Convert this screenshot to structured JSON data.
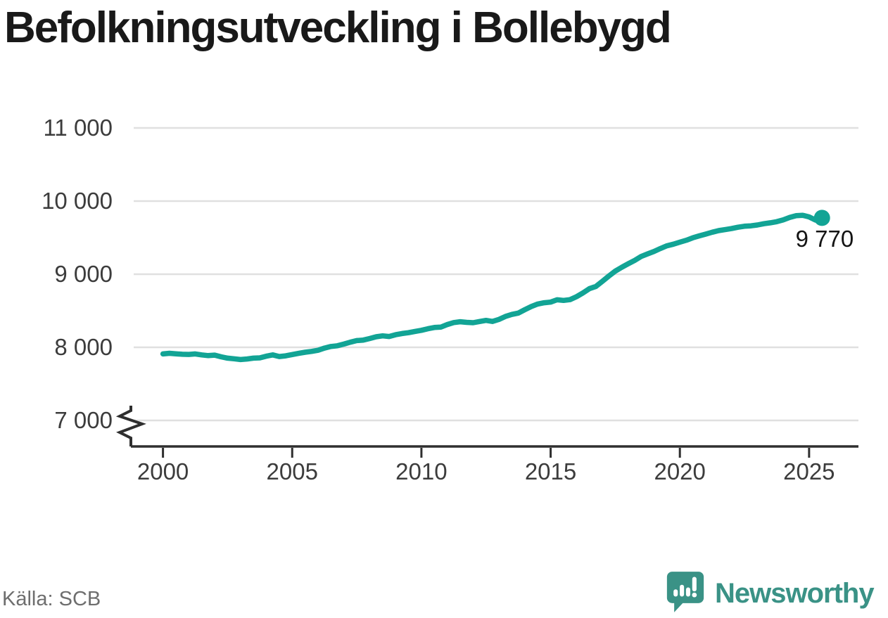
{
  "title": "Befolkningsutveckling i Bollebygd",
  "source": "Källa: SCB",
  "branding": {
    "logo_text": "Newsworthy",
    "logo_icon": "newsworthy-chart-bubble-icon",
    "logo_color": "#3a9286"
  },
  "chart_data": {
    "type": "line",
    "title": "Befolkningsutveckling i Bollebygd",
    "grid": true,
    "axis_break": true,
    "line_color": "#12a495",
    "grid_color": "#e0e0e0",
    "axis_color": "#2f2f2f",
    "ylim": [
      7000,
      11000
    ],
    "xlim": [
      2000,
      2025.5
    ],
    "end_value": 9770,
    "end_label": "9 770",
    "x_ticks": [
      {
        "value": 2000,
        "label": "2000"
      },
      {
        "value": 2005,
        "label": "2005"
      },
      {
        "value": 2010,
        "label": "2010"
      },
      {
        "value": 2015,
        "label": "2015"
      },
      {
        "value": 2020,
        "label": "2020"
      },
      {
        "value": 2025,
        "label": "2025"
      }
    ],
    "y_ticks": [
      {
        "value": 7000,
        "label": "7 000"
      },
      {
        "value": 8000,
        "label": "8 000"
      },
      {
        "value": 9000,
        "label": "9 000"
      },
      {
        "value": 10000,
        "label": "10 000"
      },
      {
        "value": 11000,
        "label": "11 000"
      }
    ],
    "series": [
      {
        "name": "Befolkning (kvartal)",
        "points": [
          [
            2000.0,
            7910
          ],
          [
            2000.25,
            7918
          ],
          [
            2000.5,
            7912
          ],
          [
            2000.75,
            7905
          ],
          [
            2001.0,
            7903
          ],
          [
            2001.25,
            7910
          ],
          [
            2001.5,
            7896
          ],
          [
            2001.75,
            7887
          ],
          [
            2002.0,
            7893
          ],
          [
            2002.25,
            7870
          ],
          [
            2002.5,
            7852
          ],
          [
            2002.75,
            7843
          ],
          [
            2003.0,
            7833
          ],
          [
            2003.25,
            7840
          ],
          [
            2003.5,
            7852
          ],
          [
            2003.75,
            7856
          ],
          [
            2004.0,
            7879
          ],
          [
            2004.25,
            7896
          ],
          [
            2004.5,
            7874
          ],
          [
            2004.75,
            7884
          ],
          [
            2005.0,
            7901
          ],
          [
            2005.25,
            7917
          ],
          [
            2005.5,
            7933
          ],
          [
            2005.75,
            7944
          ],
          [
            2006.0,
            7960
          ],
          [
            2006.25,
            7989
          ],
          [
            2006.5,
            8012
          ],
          [
            2006.75,
            8021
          ],
          [
            2007.0,
            8044
          ],
          [
            2007.25,
            8070
          ],
          [
            2007.5,
            8092
          ],
          [
            2007.75,
            8099
          ],
          [
            2008.0,
            8120
          ],
          [
            2008.25,
            8144
          ],
          [
            2008.5,
            8157
          ],
          [
            2008.75,
            8148
          ],
          [
            2009.0,
            8172
          ],
          [
            2009.25,
            8188
          ],
          [
            2009.5,
            8200
          ],
          [
            2009.75,
            8217
          ],
          [
            2010.0,
            8233
          ],
          [
            2010.25,
            8254
          ],
          [
            2010.5,
            8271
          ],
          [
            2010.75,
            8276
          ],
          [
            2011.0,
            8312
          ],
          [
            2011.25,
            8338
          ],
          [
            2011.5,
            8350
          ],
          [
            2011.75,
            8341
          ],
          [
            2012.0,
            8337
          ],
          [
            2012.25,
            8353
          ],
          [
            2012.5,
            8368
          ],
          [
            2012.75,
            8354
          ],
          [
            2013.0,
            8382
          ],
          [
            2013.25,
            8422
          ],
          [
            2013.5,
            8450
          ],
          [
            2013.75,
            8468
          ],
          [
            2014.0,
            8514
          ],
          [
            2014.25,
            8558
          ],
          [
            2014.5,
            8592
          ],
          [
            2014.75,
            8610
          ],
          [
            2015.0,
            8618
          ],
          [
            2015.25,
            8650
          ],
          [
            2015.5,
            8641
          ],
          [
            2015.75,
            8652
          ],
          [
            2016.0,
            8692
          ],
          [
            2016.25,
            8744
          ],
          [
            2016.5,
            8802
          ],
          [
            2016.75,
            8833
          ],
          [
            2017.0,
            8902
          ],
          [
            2017.25,
            8974
          ],
          [
            2017.5,
            9042
          ],
          [
            2017.75,
            9094
          ],
          [
            2018.0,
            9142
          ],
          [
            2018.25,
            9188
          ],
          [
            2018.5,
            9242
          ],
          [
            2018.75,
            9278
          ],
          [
            2019.0,
            9312
          ],
          [
            2019.25,
            9352
          ],
          [
            2019.5,
            9388
          ],
          [
            2019.75,
            9411
          ],
          [
            2020.0,
            9438
          ],
          [
            2020.25,
            9464
          ],
          [
            2020.5,
            9498
          ],
          [
            2020.75,
            9524
          ],
          [
            2021.0,
            9548
          ],
          [
            2021.25,
            9574
          ],
          [
            2021.5,
            9596
          ],
          [
            2021.75,
            9610
          ],
          [
            2022.0,
            9624
          ],
          [
            2022.25,
            9642
          ],
          [
            2022.5,
            9656
          ],
          [
            2022.75,
            9662
          ],
          [
            2023.0,
            9673
          ],
          [
            2023.25,
            9690
          ],
          [
            2023.5,
            9703
          ],
          [
            2023.75,
            9718
          ],
          [
            2024.0,
            9742
          ],
          [
            2024.25,
            9776
          ],
          [
            2024.5,
            9800
          ],
          [
            2024.75,
            9806
          ],
          [
            2025.0,
            9784
          ],
          [
            2025.25,
            9740
          ],
          [
            2025.5,
            9770
          ]
        ]
      }
    ]
  }
}
